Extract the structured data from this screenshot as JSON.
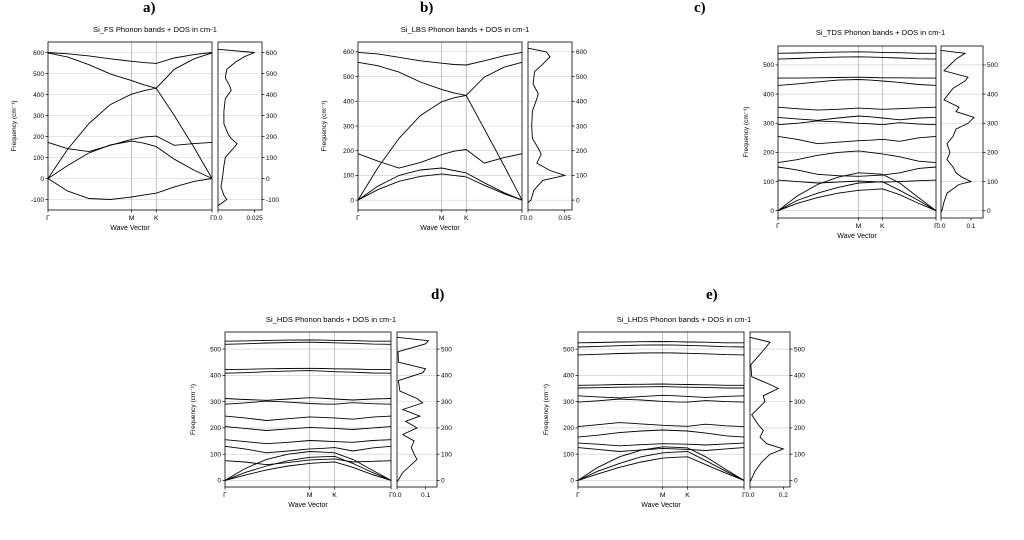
{
  "chart_data": [
    {
      "type": "line",
      "panel_label": "a)",
      "title": "Si_FS Phonon bands + DOS in cm-1",
      "xlabel": "Wave Vector",
      "ylabel": "Frequency (cm⁻¹)",
      "x_tick_labels": [
        "Γ",
        "M",
        "K",
        "Γ"
      ],
      "x_tick_pos": [
        0,
        0.51,
        0.66,
        1
      ],
      "ylim": [
        -150,
        650
      ],
      "yticks": [
        -100,
        0,
        100,
        200,
        300,
        400,
        500,
        600
      ],
      "grid": true,
      "bands": {
        "x": [
          0,
          0.12,
          0.25,
          0.38,
          0.51,
          0.585,
          0.66,
          0.77,
          0.89,
          1
        ],
        "series": [
          [
            0,
            -60,
            -95,
            -100,
            -88,
            -78,
            -70,
            -40,
            -14,
            0
          ],
          [
            0,
            62,
            122,
            160,
            178,
            168,
            152,
            92,
            40,
            0
          ],
          [
            0,
            140,
            262,
            352,
            402,
            418,
            430,
            300,
            148,
            0
          ],
          [
            172,
            142,
            128,
            158,
            186,
            197,
            202,
            158,
            166,
            172
          ],
          [
            598,
            578,
            542,
            498,
            466,
            446,
            430,
            520,
            570,
            598
          ],
          [
            600,
            594,
            584,
            570,
            558,
            552,
            548,
            574,
            590,
            600
          ]
        ]
      },
      "dos": {
        "xlim": [
          0,
          0.03
        ],
        "xticks": [
          0.0,
          0.025
        ],
        "xtick_labels": [
          "0.0",
          "0.025"
        ],
        "frequencies": [
          -130,
          -100,
          -80,
          -40,
          0,
          60,
          100,
          140,
          165,
          190,
          210,
          260,
          320,
          380,
          420,
          440,
          480,
          520,
          555,
          580,
          600,
          615
        ],
        "values": [
          0,
          0.006,
          0.004,
          0.002,
          0.003,
          0.004,
          0.005,
          0.01,
          0.013,
          0.009,
          0.007,
          0.004,
          0.004,
          0.005,
          0.009,
          0.008,
          0.005,
          0.006,
          0.012,
          0.018,
          0.025,
          0
        ]
      }
    },
    {
      "type": "line",
      "panel_label": "b)",
      "title": "Si_LBS Phonon bands + DOS in cm-1",
      "xlabel": "Wave Vector",
      "ylabel": "Frequency (cm⁻¹)",
      "x_tick_labels": [
        "Γ",
        "M",
        "K",
        "Γ"
      ],
      "x_tick_pos": [
        0,
        0.51,
        0.66,
        1
      ],
      "ylim": [
        -40,
        640
      ],
      "yticks": [
        0,
        100,
        200,
        300,
        400,
        500,
        600
      ],
      "grid": true,
      "bands": {
        "x": [
          0,
          0.12,
          0.25,
          0.38,
          0.51,
          0.585,
          0.66,
          0.77,
          0.89,
          1
        ],
        "series": [
          [
            0,
            42,
            76,
            96,
            106,
            100,
            94,
            60,
            26,
            0
          ],
          [
            0,
            56,
            100,
            122,
            130,
            120,
            110,
            70,
            30,
            0
          ],
          [
            0,
            130,
            250,
            342,
            398,
            414,
            424,
            288,
            140,
            0
          ],
          [
            188,
            158,
            130,
            152,
            184,
            198,
            205,
            150,
            172,
            188
          ],
          [
            558,
            544,
            518,
            478,
            448,
            434,
            424,
            498,
            538,
            558
          ],
          [
            598,
            592,
            578,
            564,
            554,
            549,
            547,
            564,
            584,
            598
          ]
        ]
      },
      "dos": {
        "xlim": [
          0,
          0.06
        ],
        "xticks": [
          0.0,
          0.05
        ],
        "xtick_labels": [
          "0.0",
          "0.05"
        ],
        "frequencies": [
          -10,
          0,
          40,
          80,
          100,
          120,
          150,
          185,
          205,
          250,
          300,
          360,
          410,
          430,
          470,
          520,
          550,
          580,
          600,
          615
        ],
        "values": [
          0,
          0.004,
          0.008,
          0.02,
          0.05,
          0.03,
          0.012,
          0.018,
          0.015,
          0.006,
          0.005,
          0.006,
          0.012,
          0.014,
          0.007,
          0.009,
          0.02,
          0.03,
          0.025,
          0
        ]
      }
    },
    {
      "type": "line",
      "panel_label": "c)",
      "title": "Si_TDS Phonon bands + DOS in cm-1",
      "xlabel": "Wave Vector",
      "ylabel": "Frequency (cm⁻¹)",
      "x_tick_labels": [
        "Γ",
        "M",
        "K",
        "Γ"
      ],
      "x_tick_pos": [
        0,
        0.51,
        0.66,
        1
      ],
      "ylim": [
        -25,
        565
      ],
      "yticks": [
        0,
        100,
        200,
        300,
        400,
        500
      ],
      "grid": true,
      "bands": {
        "x": [
          0,
          0.12,
          0.25,
          0.38,
          0.51,
          0.585,
          0.66,
          0.77,
          0.89,
          1
        ],
        "series": [
          [
            0,
            25,
            45,
            60,
            70,
            72,
            75,
            55,
            25,
            0
          ],
          [
            0,
            35,
            60,
            80,
            95,
            97,
            100,
            70,
            35,
            0
          ],
          [
            0,
            50,
            90,
            115,
            130,
            128,
            125,
            95,
            45,
            0
          ],
          [
            105,
            100,
            95,
            98,
            102,
            100,
            98,
            100,
            103,
            105
          ],
          [
            150,
            140,
            125,
            120,
            118,
            120,
            122,
            130,
            145,
            150
          ],
          [
            165,
            175,
            190,
            200,
            205,
            200,
            195,
            185,
            170,
            165
          ],
          [
            255,
            245,
            230,
            235,
            240,
            242,
            245,
            238,
            250,
            255
          ],
          [
            295,
            300,
            308,
            305,
            300,
            298,
            295,
            302,
            297,
            295
          ],
          [
            320,
            315,
            310,
            318,
            325,
            322,
            318,
            312,
            318,
            320
          ],
          [
            355,
            350,
            345,
            348,
            352,
            350,
            348,
            350,
            353,
            355
          ],
          [
            430,
            435,
            442,
            448,
            450,
            448,
            445,
            440,
            433,
            430
          ],
          [
            455,
            455,
            456,
            457,
            458,
            457,
            456,
            456,
            455,
            455
          ],
          [
            520,
            522,
            525,
            527,
            528,
            527,
            526,
            524,
            521,
            520
          ],
          [
            540,
            541,
            543,
            544,
            545,
            544,
            543,
            542,
            540,
            540
          ]
        ]
      },
      "dos": {
        "xlim": [
          0,
          0.14
        ],
        "xticks": [
          0.0,
          0.1
        ],
        "xtick_labels": [
          "0.0",
          "0.1"
        ],
        "frequencies": [
          -5,
          0,
          30,
          60,
          90,
          100,
          115,
          130,
          150,
          175,
          200,
          230,
          255,
          280,
          300,
          320,
          340,
          355,
          380,
          420,
          445,
          458,
          480,
          520,
          540,
          550
        ],
        "values": [
          0,
          0.003,
          0.01,
          0.02,
          0.06,
          0.1,
          0.07,
          0.05,
          0.04,
          0.02,
          0.03,
          0.02,
          0.04,
          0.05,
          0.09,
          0.11,
          0.05,
          0.06,
          0.01,
          0.04,
          0.08,
          0.09,
          0.01,
          0.05,
          0.08,
          0
        ]
      }
    },
    {
      "type": "line",
      "panel_label": "d)",
      "title": "Si_HDS Phonon bands + DOS in cm-1",
      "xlabel": "Wave Vector",
      "ylabel": "Frequency (cm⁻¹)",
      "x_tick_labels": [
        "Γ",
        "M",
        "K",
        "Γ"
      ],
      "x_tick_pos": [
        0,
        0.51,
        0.66,
        1
      ],
      "ylim": [
        -25,
        565
      ],
      "yticks": [
        0,
        100,
        200,
        300,
        400,
        500
      ],
      "grid": true,
      "bands": {
        "x": [
          0,
          0.12,
          0.25,
          0.38,
          0.51,
          0.585,
          0.66,
          0.77,
          0.89,
          1
        ],
        "series": [
          [
            0,
            20,
            40,
            55,
            65,
            68,
            70,
            50,
            22,
            0
          ],
          [
            0,
            30,
            55,
            75,
            88,
            90,
            92,
            65,
            30,
            0
          ],
          [
            0,
            45,
            80,
            100,
            110,
            108,
            105,
            80,
            38,
            0
          ],
          [
            75,
            70,
            60,
            68,
            78,
            80,
            82,
            70,
            73,
            75
          ],
          [
            130,
            120,
            105,
            112,
            120,
            122,
            125,
            112,
            124,
            130
          ],
          [
            155,
            148,
            140,
            145,
            152,
            150,
            148,
            145,
            152,
            155
          ],
          [
            205,
            198,
            190,
            196,
            202,
            200,
            198,
            194,
            200,
            205
          ],
          [
            245,
            238,
            228,
            235,
            242,
            240,
            238,
            233,
            241,
            245
          ],
          [
            290,
            295,
            302,
            298,
            293,
            291,
            290,
            296,
            292,
            290
          ],
          [
            312,
            308,
            305,
            310,
            315,
            313,
            310,
            306,
            310,
            312
          ],
          [
            408,
            410,
            414,
            416,
            418,
            416,
            414,
            412,
            409,
            408
          ],
          [
            422,
            423,
            425,
            426,
            427,
            426,
            425,
            424,
            422,
            422
          ],
          [
            518,
            520,
            523,
            525,
            526,
            525,
            524,
            522,
            519,
            518
          ],
          [
            530,
            531,
            533,
            534,
            535,
            534,
            533,
            532,
            530,
            530
          ]
        ]
      },
      "dos": {
        "xlim": [
          0,
          0.14
        ],
        "xticks": [
          0.0,
          0.1
        ],
        "xtick_labels": [
          "0.0",
          "0.1"
        ],
        "frequencies": [
          -5,
          0,
          30,
          60,
          80,
          100,
          125,
          150,
          175,
          200,
          225,
          245,
          270,
          295,
          312,
          340,
          380,
          410,
          425,
          450,
          490,
          520,
          532,
          545
        ],
        "values": [
          0,
          0.004,
          0.02,
          0.05,
          0.07,
          0.06,
          0.05,
          0.06,
          0.02,
          0.07,
          0.03,
          0.08,
          0.02,
          0.09,
          0.07,
          0.01,
          0.005,
          0.09,
          0.1,
          0.005,
          0.004,
          0.1,
          0.11,
          0
        ]
      }
    },
    {
      "type": "line",
      "panel_label": "e)",
      "title": "Si_LHDS Phonon bands + DOS in cm-1",
      "xlabel": "Wave Vector",
      "ylabel": "Frequency (cm⁻¹)",
      "x_tick_labels": [
        "Γ",
        "M",
        "K",
        "Γ"
      ],
      "x_tick_pos": [
        0,
        0.51,
        0.66,
        1
      ],
      "ylim": [
        -25,
        565
      ],
      "yticks": [
        0,
        100,
        200,
        300,
        400,
        500
      ],
      "grid": true,
      "bands": {
        "x": [
          0,
          0.12,
          0.25,
          0.38,
          0.51,
          0.585,
          0.66,
          0.77,
          0.89,
          1
        ],
        "series": [
          [
            0,
            25,
            50,
            70,
            85,
            88,
            90,
            60,
            28,
            0
          ],
          [
            0,
            35,
            65,
            90,
            105,
            108,
            110,
            75,
            35,
            0
          ],
          [
            0,
            50,
            90,
            115,
            128,
            126,
            124,
            90,
            42,
            0
          ],
          [
            125,
            118,
            110,
            116,
            122,
            120,
            118,
            114,
            120,
            125
          ],
          [
            142,
            138,
            132,
            136,
            140,
            139,
            138,
            135,
            139,
            142
          ],
          [
            165,
            172,
            182,
            188,
            192,
            190,
            188,
            180,
            170,
            165
          ],
          [
            205,
            212,
            220,
            215,
            210,
            208,
            206,
            214,
            208,
            205
          ],
          [
            298,
            303,
            310,
            306,
            301,
            299,
            298,
            304,
            300,
            298
          ],
          [
            322,
            318,
            314,
            319,
            324,
            322,
            320,
            316,
            320,
            322
          ],
          [
            352,
            353,
            355,
            356,
            357,
            356,
            355,
            354,
            352,
            352
          ],
          [
            362,
            363,
            365,
            366,
            367,
            366,
            365,
            364,
            362,
            362
          ],
          [
            478,
            480,
            483,
            485,
            486,
            485,
            484,
            482,
            479,
            478
          ],
          [
            508,
            510,
            513,
            515,
            516,
            515,
            514,
            512,
            509,
            508
          ],
          [
            524,
            525,
            527,
            528,
            529,
            528,
            527,
            526,
            524,
            524
          ]
        ]
      },
      "dos": {
        "xlim": [
          0,
          0.24
        ],
        "xticks": [
          0.0,
          0.2
        ],
        "xtick_labels": [
          "0.0",
          "0.2"
        ],
        "frequencies": [
          -5,
          0,
          35,
          70,
          100,
          120,
          140,
          165,
          190,
          212,
          250,
          300,
          322,
          350,
          365,
          395,
          440,
          480,
          510,
          526,
          545
        ],
        "values": [
          0,
          0.005,
          0.03,
          0.07,
          0.12,
          0.2,
          0.1,
          0.06,
          0.08,
          0.05,
          0.01,
          0.09,
          0.08,
          0.17,
          0.12,
          0.01,
          0.005,
          0.06,
          0.1,
          0.12,
          0
        ]
      }
    }
  ]
}
